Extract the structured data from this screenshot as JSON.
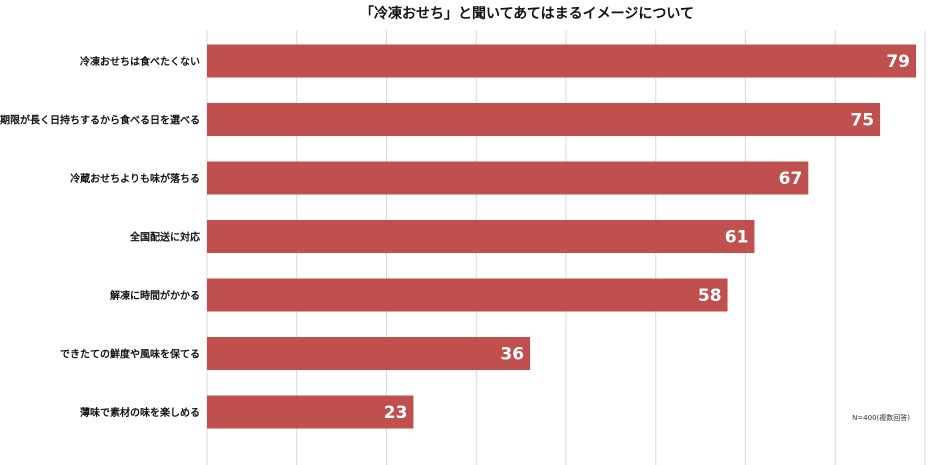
{
  "chart_data": {
    "type": "bar",
    "orientation": "horizontal",
    "title": "「冷凍おせち」と聞いてあてはまるイメージについて",
    "categories": [
      "冷凍おせちは食べたくない",
      "賞味期限が長く日持ちするから食べる日を選べる",
      "冷蔵おせちよりも味が落ちる",
      "全国配送に対応",
      "解凍に時間がかかる",
      "できたての鮮度や風味を保てる",
      "薄味で素材の味を楽しめる"
    ],
    "values": [
      79,
      75,
      67,
      61,
      58,
      36,
      23
    ],
    "xlim": [
      0,
      80
    ],
    "grid": true,
    "note": "N=400(複数回答)",
    "colors": {
      "bar": "#c0504d",
      "value_text": "#ffffff",
      "grid": "#d9d9d9"
    }
  }
}
